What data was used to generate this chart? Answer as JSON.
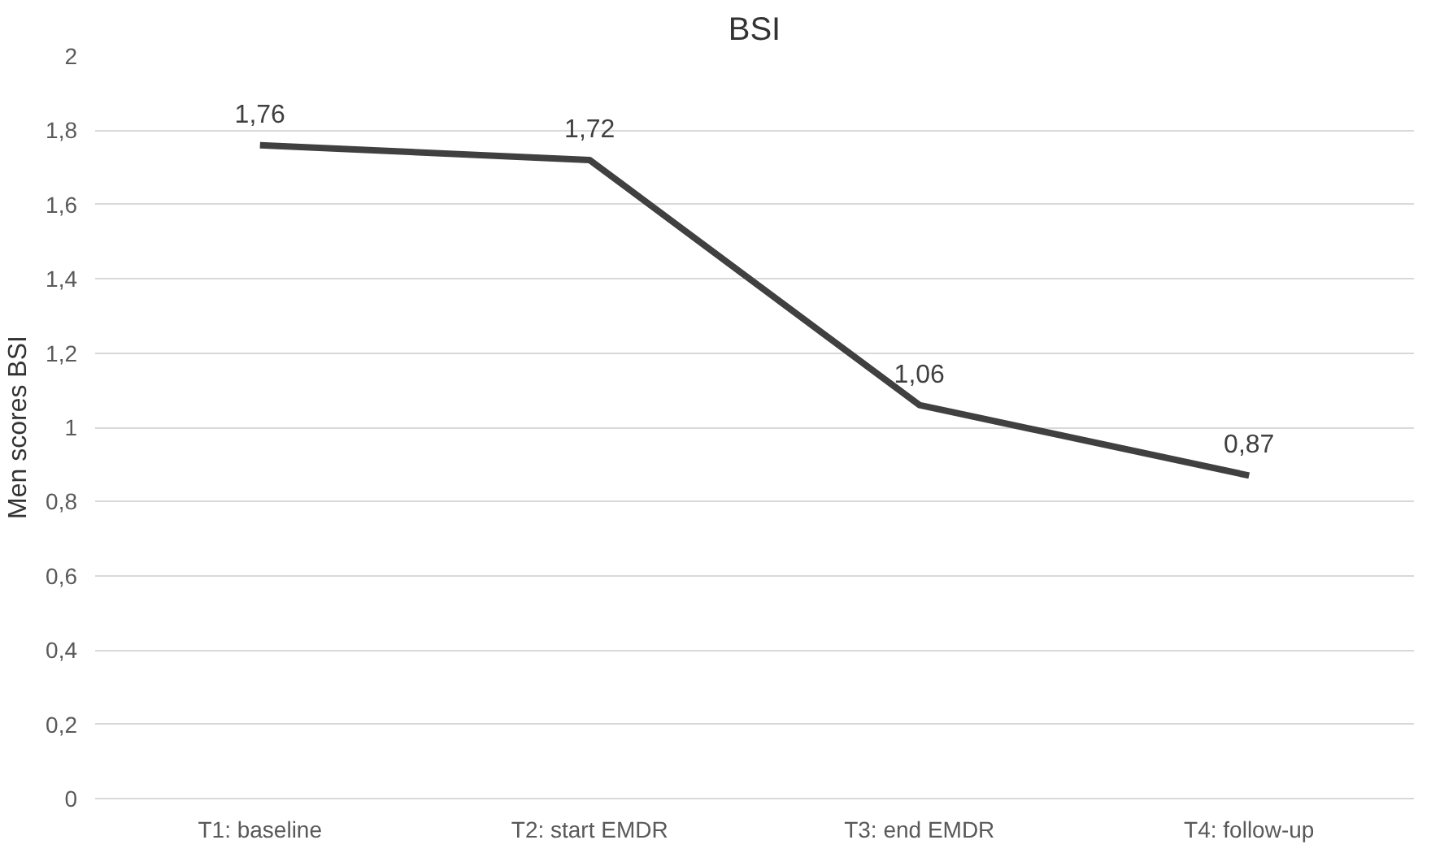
{
  "chart_data": {
    "type": "line",
    "title": "BSI",
    "ylabel": "Men scores BSI",
    "categories": [
      "T1: baseline",
      "T2: start EMDR",
      "T3: end EMDR",
      "T4: follow-up"
    ],
    "series": [
      {
        "color": "#404040",
        "values": [
          1.76,
          1.72,
          1.06,
          0.87
        ],
        "value_labels": [
          "1,76",
          "1,72",
          "1,06",
          "0,87"
        ]
      }
    ],
    "ylim": [
      0,
      2
    ],
    "yticks": [
      0,
      {
        "value": 0.2,
        "label": "0,2"
      },
      {
        "value": 0.4,
        "label": "0,4"
      },
      {
        "value": 0.6,
        "label": "0,6"
      },
      {
        "value": 0.8,
        "label": "0,8"
      },
      1,
      {
        "value": 1.2,
        "label": "1,2"
      },
      {
        "value": 1.4,
        "label": "1,4"
      },
      {
        "value": 1.6,
        "label": "1,6"
      },
      {
        "value": 1.8,
        "label": "1,8"
      },
      2
    ],
    "grid": "y",
    "marker": "none",
    "line_style": "solid"
  }
}
